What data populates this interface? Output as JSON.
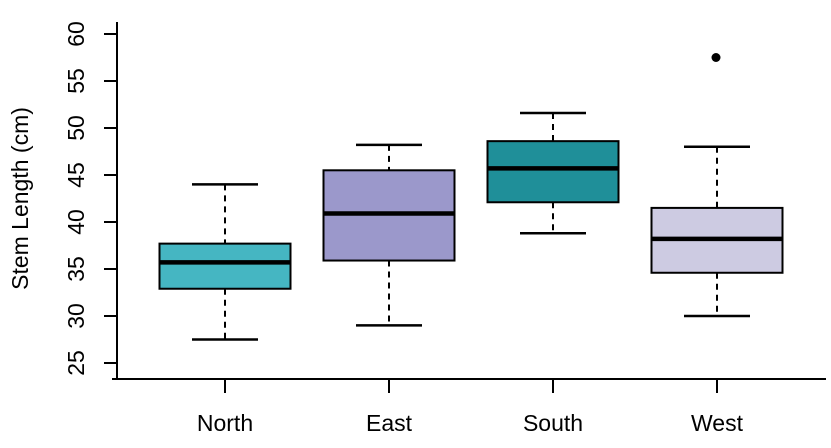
{
  "figure": {
    "background": "#FFFFFF",
    "description": "R-style boxplot of stem length by compass direction"
  },
  "chart_data": {
    "type": "boxplot",
    "title": "",
    "xlabel": "",
    "ylabel": "Stem Length (cm)",
    "ylim": [
      25,
      60
    ],
    "yticks": [
      25,
      30,
      35,
      40,
      45,
      50,
      55,
      60
    ],
    "grid": false,
    "legend": "none",
    "categories": [
      "North",
      "East",
      "South",
      "West"
    ],
    "series": [
      {
        "name": "North",
        "min": 27.5,
        "q1": 32.9,
        "median": 35.7,
        "q3": 37.7,
        "max": 44.0,
        "outliers": [],
        "fill": "#45B6C2"
      },
      {
        "name": "East",
        "min": 29.0,
        "q1": 35.9,
        "median": 40.9,
        "q3": 45.5,
        "max": 48.2,
        "outliers": [],
        "fill": "#9B98CB"
      },
      {
        "name": "South",
        "min": 38.8,
        "q1": 42.1,
        "median": 45.7,
        "q3": 48.6,
        "max": 51.6,
        "outliers": [],
        "fill": "#1F8F99"
      },
      {
        "name": "West",
        "min": 30.0,
        "q1": 34.6,
        "median": 38.2,
        "q3": 41.5,
        "max": 48.0,
        "outliers": [
          57.5
        ],
        "fill": "#CDCBE2"
      }
    ],
    "colors": {
      "axis": "#000000",
      "box_border": "#000000",
      "median": "#000000",
      "whisker": "#000000",
      "outlier": "#000000",
      "text": "#000000",
      "background": "#FFFFFF"
    }
  }
}
